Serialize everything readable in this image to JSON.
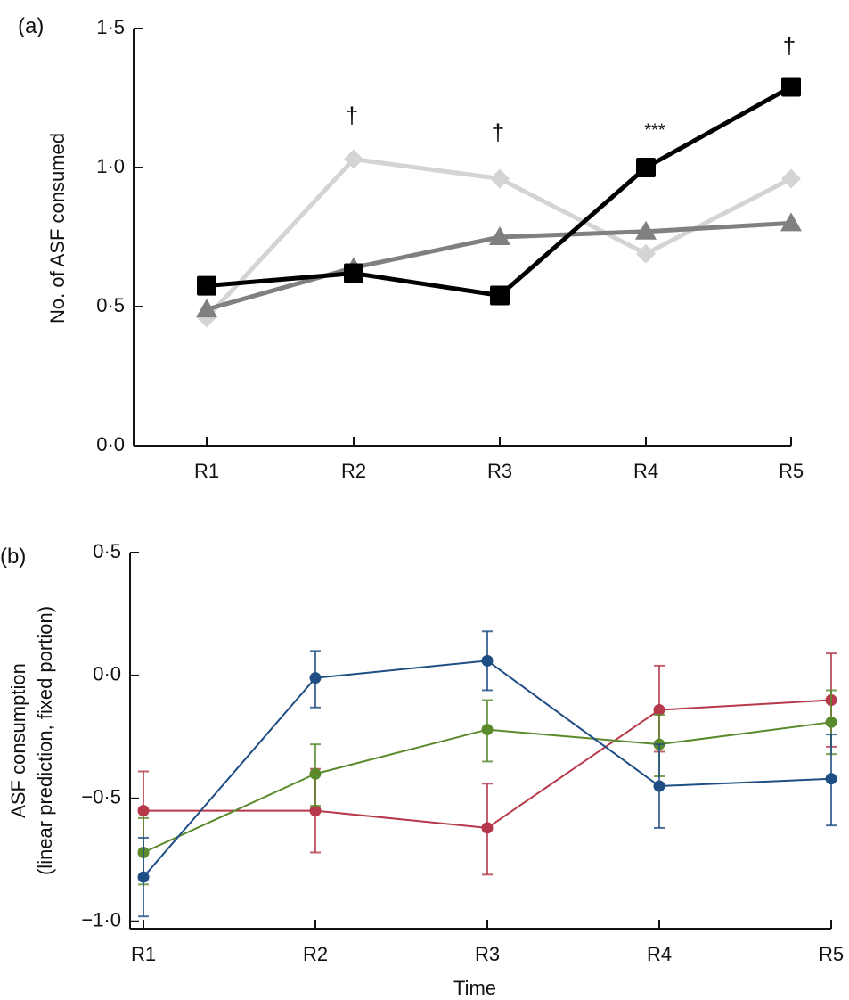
{
  "chart_data": [
    {
      "panel_label": "(a)",
      "type": "line",
      "title": "",
      "xlabel": "",
      "ylabel": "No. of ASF consumed",
      "ylim": [
        0,
        1.5
      ],
      "yticks": [
        "0·0",
        "0·5",
        "1·0",
        "1·5"
      ],
      "ytick_values": [
        0,
        0.5,
        1.0,
        1.5
      ],
      "categories": [
        "R1",
        "R2",
        "R3",
        "R4",
        "R5"
      ],
      "grid": false,
      "series": [
        {
          "name": "series-light-diamond",
          "marker": "diamond",
          "color": "#d4d4d4",
          "values": [
            0.46,
            1.03,
            0.96,
            0.69,
            0.96
          ]
        },
        {
          "name": "series-grey-triangle",
          "marker": "triangle",
          "color": "#808080",
          "values": [
            0.49,
            0.64,
            0.75,
            0.77,
            0.8
          ]
        },
        {
          "name": "series-black-square",
          "marker": "square",
          "color": "#000000",
          "values": [
            0.575,
            0.62,
            0.54,
            1.0,
            1.29
          ]
        }
      ],
      "annotations": [
        {
          "category": "R2",
          "text": "†",
          "y": 1.18
        },
        {
          "category": "R3",
          "text": "†",
          "y": 1.12
        },
        {
          "category": "R4",
          "text": "***",
          "y": 1.13
        },
        {
          "category": "R5",
          "text": "†",
          "y": 1.43
        }
      ]
    },
    {
      "panel_label": "(b)",
      "type": "line",
      "title": "",
      "xlabel": "Time",
      "ylabel": "ASF consumption",
      "ylabel2": "(linear prediction, fixed portion)",
      "ylim": [
        -1.03,
        0.5
      ],
      "yticks": [
        "−1·0",
        "−0·5",
        "0·0",
        "0·5"
      ],
      "ytick_values": [
        -1.0,
        -0.5,
        0.0,
        0.5
      ],
      "categories": [
        "R1",
        "R2",
        "R3",
        "R4",
        "R5"
      ],
      "grid": false,
      "series": [
        {
          "name": "series-red",
          "color": "#b5394a",
          "values": [
            -0.55,
            -0.55,
            -0.62,
            -0.14,
            -0.1
          ],
          "ci_low": [
            -0.71,
            -0.72,
            -0.81,
            -0.31,
            -0.29
          ],
          "ci_high": [
            -0.39,
            -0.38,
            -0.44,
            0.04,
            0.09
          ]
        },
        {
          "name": "series-green",
          "color": "#5b8a2c",
          "values": [
            -0.72,
            -0.4,
            -0.22,
            -0.28,
            -0.19
          ],
          "ci_low": [
            -0.85,
            -0.53,
            -0.35,
            -0.41,
            -0.32
          ],
          "ci_high": [
            -0.58,
            -0.28,
            -0.1,
            -0.16,
            -0.06
          ]
        },
        {
          "name": "series-blue",
          "color": "#1f4e84",
          "values": [
            -0.82,
            -0.01,
            0.06,
            -0.45,
            -0.42
          ],
          "ci_low": [
            -0.98,
            -0.13,
            -0.06,
            -0.62,
            -0.61
          ],
          "ci_high": [
            -0.66,
            0.1,
            0.18,
            -0.28,
            -0.24
          ]
        }
      ]
    }
  ]
}
